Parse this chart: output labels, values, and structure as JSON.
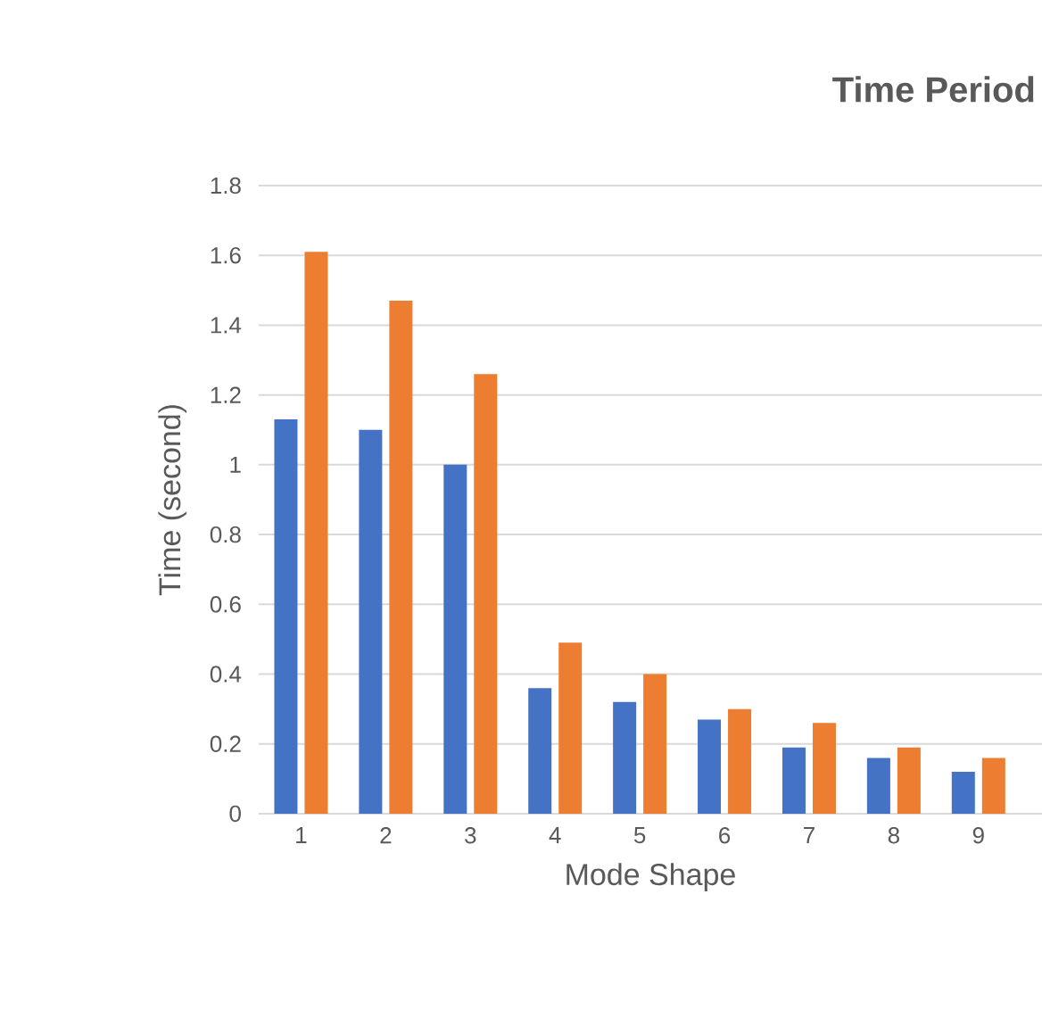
{
  "chart_data": {
    "type": "bar",
    "title": "Time Period",
    "xlabel": "Mode Shape",
    "ylabel": "Time (second)",
    "categories": [
      "1",
      "2",
      "3",
      "4",
      "5",
      "6",
      "7",
      "8",
      "9"
    ],
    "series": [
      {
        "color": "#4472c4",
        "values": [
          1.13,
          1.1,
          1.0,
          0.36,
          0.32,
          0.27,
          0.19,
          0.16,
          0.12
        ]
      },
      {
        "color": "#ed7d31",
        "values": [
          1.61,
          1.47,
          1.26,
          0.49,
          0.4,
          0.3,
          0.26,
          0.19,
          0.16
        ]
      }
    ],
    "ylim": [
      0,
      1.8
    ],
    "yticks": [
      0,
      0.2,
      0.4,
      0.6,
      0.8,
      1,
      1.2,
      1.4,
      1.6,
      1.8
    ],
    "grid": "y"
  }
}
